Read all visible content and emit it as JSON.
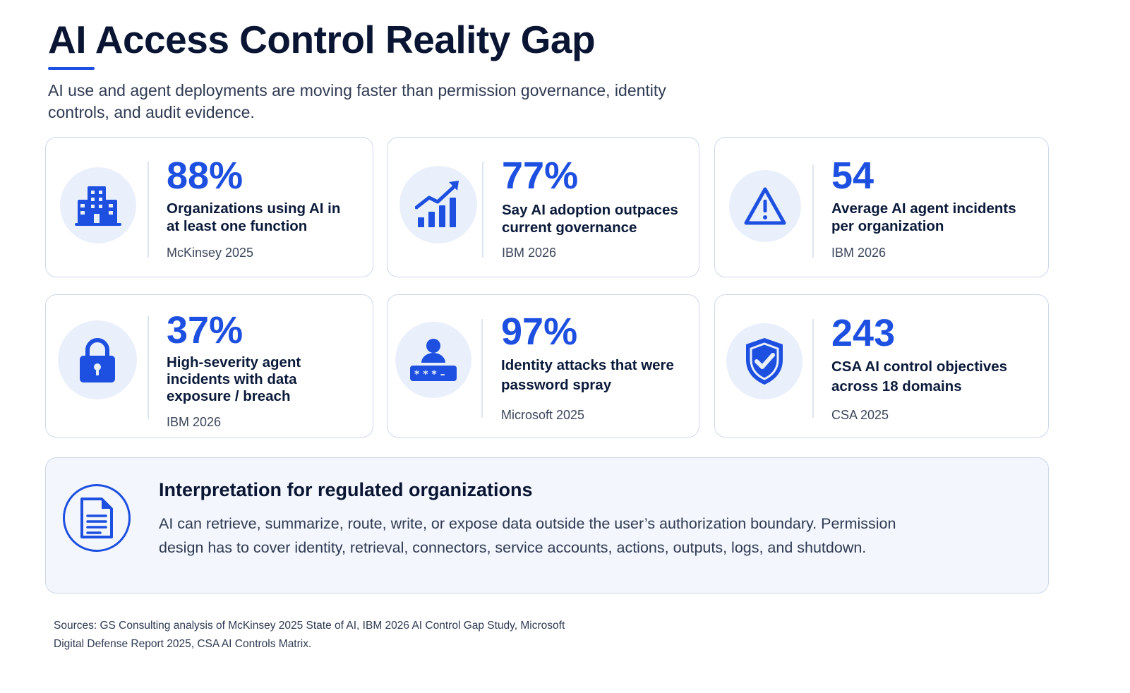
{
  "header": {
    "title": "AI Access Control Reality Gap",
    "subtitle": "AI use and agent deployments are moving faster than permission governance, identity controls, and audit evidence."
  },
  "cards": [
    {
      "value": "88%",
      "label": "Organizations using AI in at least one function",
      "source": "McKinsey 2025",
      "icon": "building-icon"
    },
    {
      "value": "77%",
      "label": "Say AI adoption outpaces current governance",
      "source": "IBM 2026",
      "icon": "growth-chart-icon"
    },
    {
      "value": "54",
      "label": "Average AI agent incidents per organization",
      "source": "IBM 2026",
      "icon": "warning-icon"
    },
    {
      "value": "37%",
      "label": "High-severity agent incidents with data exposure / breach",
      "source": "IBM 2026",
      "icon": "lock-icon"
    },
    {
      "value": "97%",
      "label": "Identity attacks that were password spray",
      "source": "Microsoft 2025",
      "icon": "user-password-icon"
    },
    {
      "value": "243",
      "label": "CSA AI control objectives across 18 domains",
      "source": "CSA 2025",
      "icon": "shield-check-icon"
    }
  ],
  "interpretation": {
    "title": "Interpretation for regulated organizations",
    "body": "AI can retrieve, summarize, route, write, or expose data outside the user’s authorization boundary. Permission design has to cover identity, retrieval, connectors, service accounts, actions, outputs, logs, and shutdown.",
    "icon": "document-icon"
  },
  "footer": {
    "sources": "Sources: GS Consulting analysis of McKinsey 2025 State of AI, IBM 2026 AI Control Gap Study, Microsoft Digital Defense Report 2025, CSA AI Controls Matrix."
  },
  "colors": {
    "accent": "#1d4fe0",
    "icon_background": "#eaf0fb",
    "panel_background": "#f3f6fc"
  }
}
